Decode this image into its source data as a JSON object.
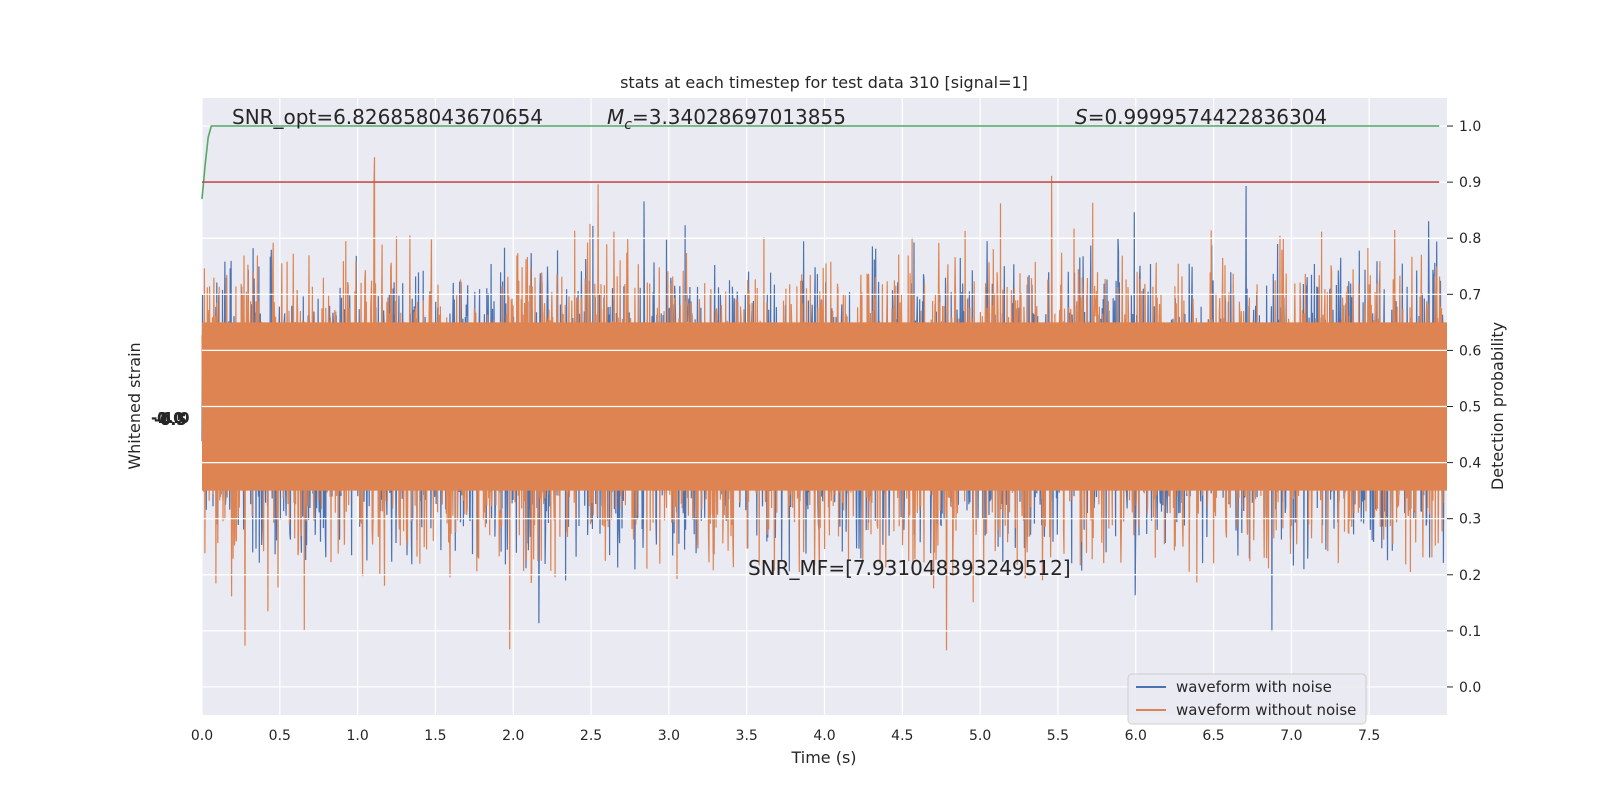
{
  "chart_data": {
    "type": "line",
    "title": "stats at each timestep for test data 310 [signal=1]",
    "xlabel": "Time (s)",
    "ylabel_left": "Whitened strain",
    "ylabel_right": "Detection probability",
    "xlim": [
      0.0,
      8.0
    ],
    "xticks": [
      "0.0",
      "0.5",
      "1.0",
      "1.5",
      "2.0",
      "2.5",
      "3.0",
      "3.5",
      "4.0",
      "4.5",
      "5.0",
      "5.5",
      "6.0",
      "6.5",
      "7.0",
      "7.5"
    ],
    "xtick_values": [
      0.0,
      0.5,
      1.0,
      1.5,
      2.0,
      2.5,
      3.0,
      3.5,
      4.0,
      4.5,
      5.0,
      5.5,
      6.0,
      6.5,
      7.0,
      7.5
    ],
    "ylim_right": [
      -0.05,
      1.05
    ],
    "yticks_right": [
      "0.0",
      "0.1",
      "0.2",
      "0.3",
      "0.4",
      "0.5",
      "0.6",
      "0.7",
      "0.8",
      "0.9",
      "1.0"
    ],
    "ytick_values_right": [
      0.0,
      0.1,
      0.2,
      0.3,
      0.4,
      0.5,
      0.6,
      0.7,
      0.8,
      0.9,
      1.0
    ],
    "grid": true,
    "legend_position": "lower-right",
    "legend": [
      "waveform with noise",
      "waveform without noise"
    ],
    "series": [
      {
        "name": "waveform with noise",
        "color": "#4c72b0",
        "style": "noise"
      },
      {
        "name": "waveform without noise",
        "color": "#dd8452",
        "style": "noise"
      },
      {
        "color": "#55a868",
        "x": [
          0.0,
          0.02,
          0.04,
          0.06,
          0.1,
          1.0,
          4.0,
          7.95
        ],
        "values": [
          0.87,
          0.93,
          0.98,
          1.0,
          1.0,
          1.0,
          1.0,
          1.0
        ]
      },
      {
        "color": "#c44e52",
        "x": [
          0.0,
          7.95
        ],
        "values": [
          0.9,
          0.9
        ]
      }
    ],
    "threshold": 0.9,
    "annotations": {
      "snr_opt": "SNR_opt=6.826858043670654",
      "mc_symbol": "M",
      "mc_sub": "c",
      "mc_value": "=3.34028697013855",
      "s_symbol": "S",
      "s_value": "=0.9999574422836304",
      "snr_mf": "SNR_MF=[7.931048393249512]"
    },
    "left_tick_clutter": "-1.0 -0.5 0.0 0.5 1.0"
  },
  "colors": {
    "axes_bg": "#eaeaf2",
    "grid": "#ffffff",
    "noise_blue": "#4c72b0",
    "noise_orange": "#dd8452",
    "probability_green": "#55a868",
    "threshold_red": "#c44e52"
  }
}
